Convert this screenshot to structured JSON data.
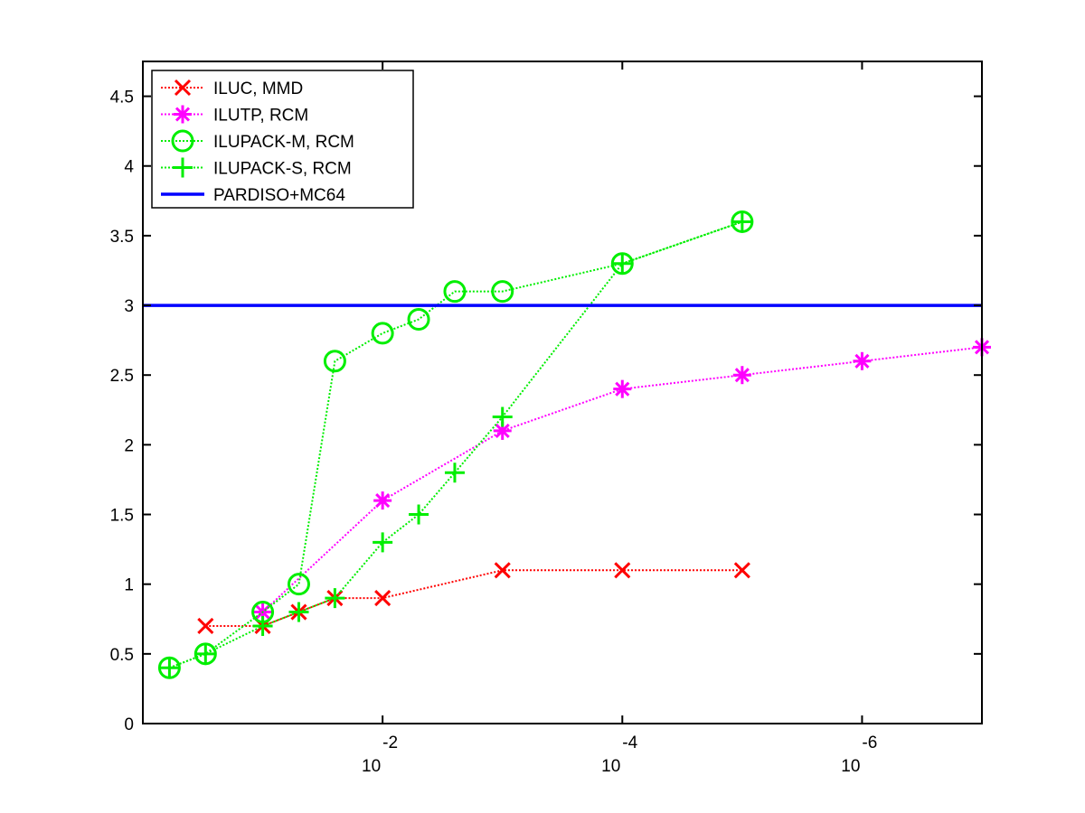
{
  "chart_data": {
    "type": "line",
    "title": "",
    "xlabel": "",
    "ylabel": "",
    "x_scale": "log-reversed",
    "xlim": [
      1,
      1e-07
    ],
    "ylim": [
      0,
      4.75
    ],
    "xticks": [
      {
        "value": 0.01,
        "base": "10",
        "exponent": "-2"
      },
      {
        "value": 0.0001,
        "base": "10",
        "exponent": "-4"
      },
      {
        "value": 1e-06,
        "base": "10",
        "exponent": "-6"
      }
    ],
    "yticks": [
      0,
      0.5,
      1,
      1.5,
      2,
      2.5,
      3,
      3.5,
      4,
      4.5
    ],
    "ytick_labels": [
      "0",
      "0.5",
      "1",
      "1.5",
      "2",
      "2.5",
      "3",
      "3.5",
      "4",
      "4.5"
    ],
    "grid": false,
    "legend_position": "top-left",
    "series": [
      {
        "name": "ILUC, MMD",
        "color": "#ff0000",
        "marker": "x",
        "line": "dotted",
        "x": [
          0.3,
          0.1,
          0.05,
          0.025,
          0.01,
          0.001,
          0.0001,
          1e-05
        ],
        "y": [
          0.7,
          0.7,
          0.8,
          0.9,
          0.9,
          1.1,
          1.1,
          1.1
        ]
      },
      {
        "name": "ILUTP, RCM",
        "color": "#ff00ff",
        "marker": "star",
        "line": "dotted",
        "x": [
          0.1,
          0.01,
          0.001,
          0.0001,
          1e-05,
          1e-06,
          1e-07
        ],
        "y": [
          0.8,
          1.6,
          2.1,
          2.4,
          2.5,
          2.6,
          2.7
        ]
      },
      {
        "name": "ILUPACK-M, RCM",
        "color": "#00ee00",
        "marker": "circle",
        "line": "dotted",
        "x": [
          0.6,
          0.3,
          0.1,
          0.05,
          0.025,
          0.01,
          0.005,
          0.0025,
          0.001,
          0.0001,
          1e-05
        ],
        "y": [
          0.4,
          0.5,
          0.8,
          1.0,
          2.6,
          2.8,
          2.9,
          3.1,
          3.1,
          3.3,
          3.6
        ]
      },
      {
        "name": "ILUPACK-S, RCM",
        "color": "#00ee00",
        "marker": "plus",
        "line": "dotted",
        "x": [
          0.6,
          0.3,
          0.1,
          0.05,
          0.025,
          0.01,
          0.005,
          0.0025,
          0.001,
          0.0001,
          1e-05
        ],
        "y": [
          0.4,
          0.5,
          0.7,
          0.8,
          0.9,
          1.3,
          1.5,
          1.8,
          2.2,
          3.3,
          3.6
        ]
      },
      {
        "name": "PARDISO+MC64",
        "color": "#0000ff",
        "marker": "none",
        "line": "solid",
        "x": [
          1,
          1e-07
        ],
        "y": [
          3,
          3
        ]
      }
    ]
  }
}
